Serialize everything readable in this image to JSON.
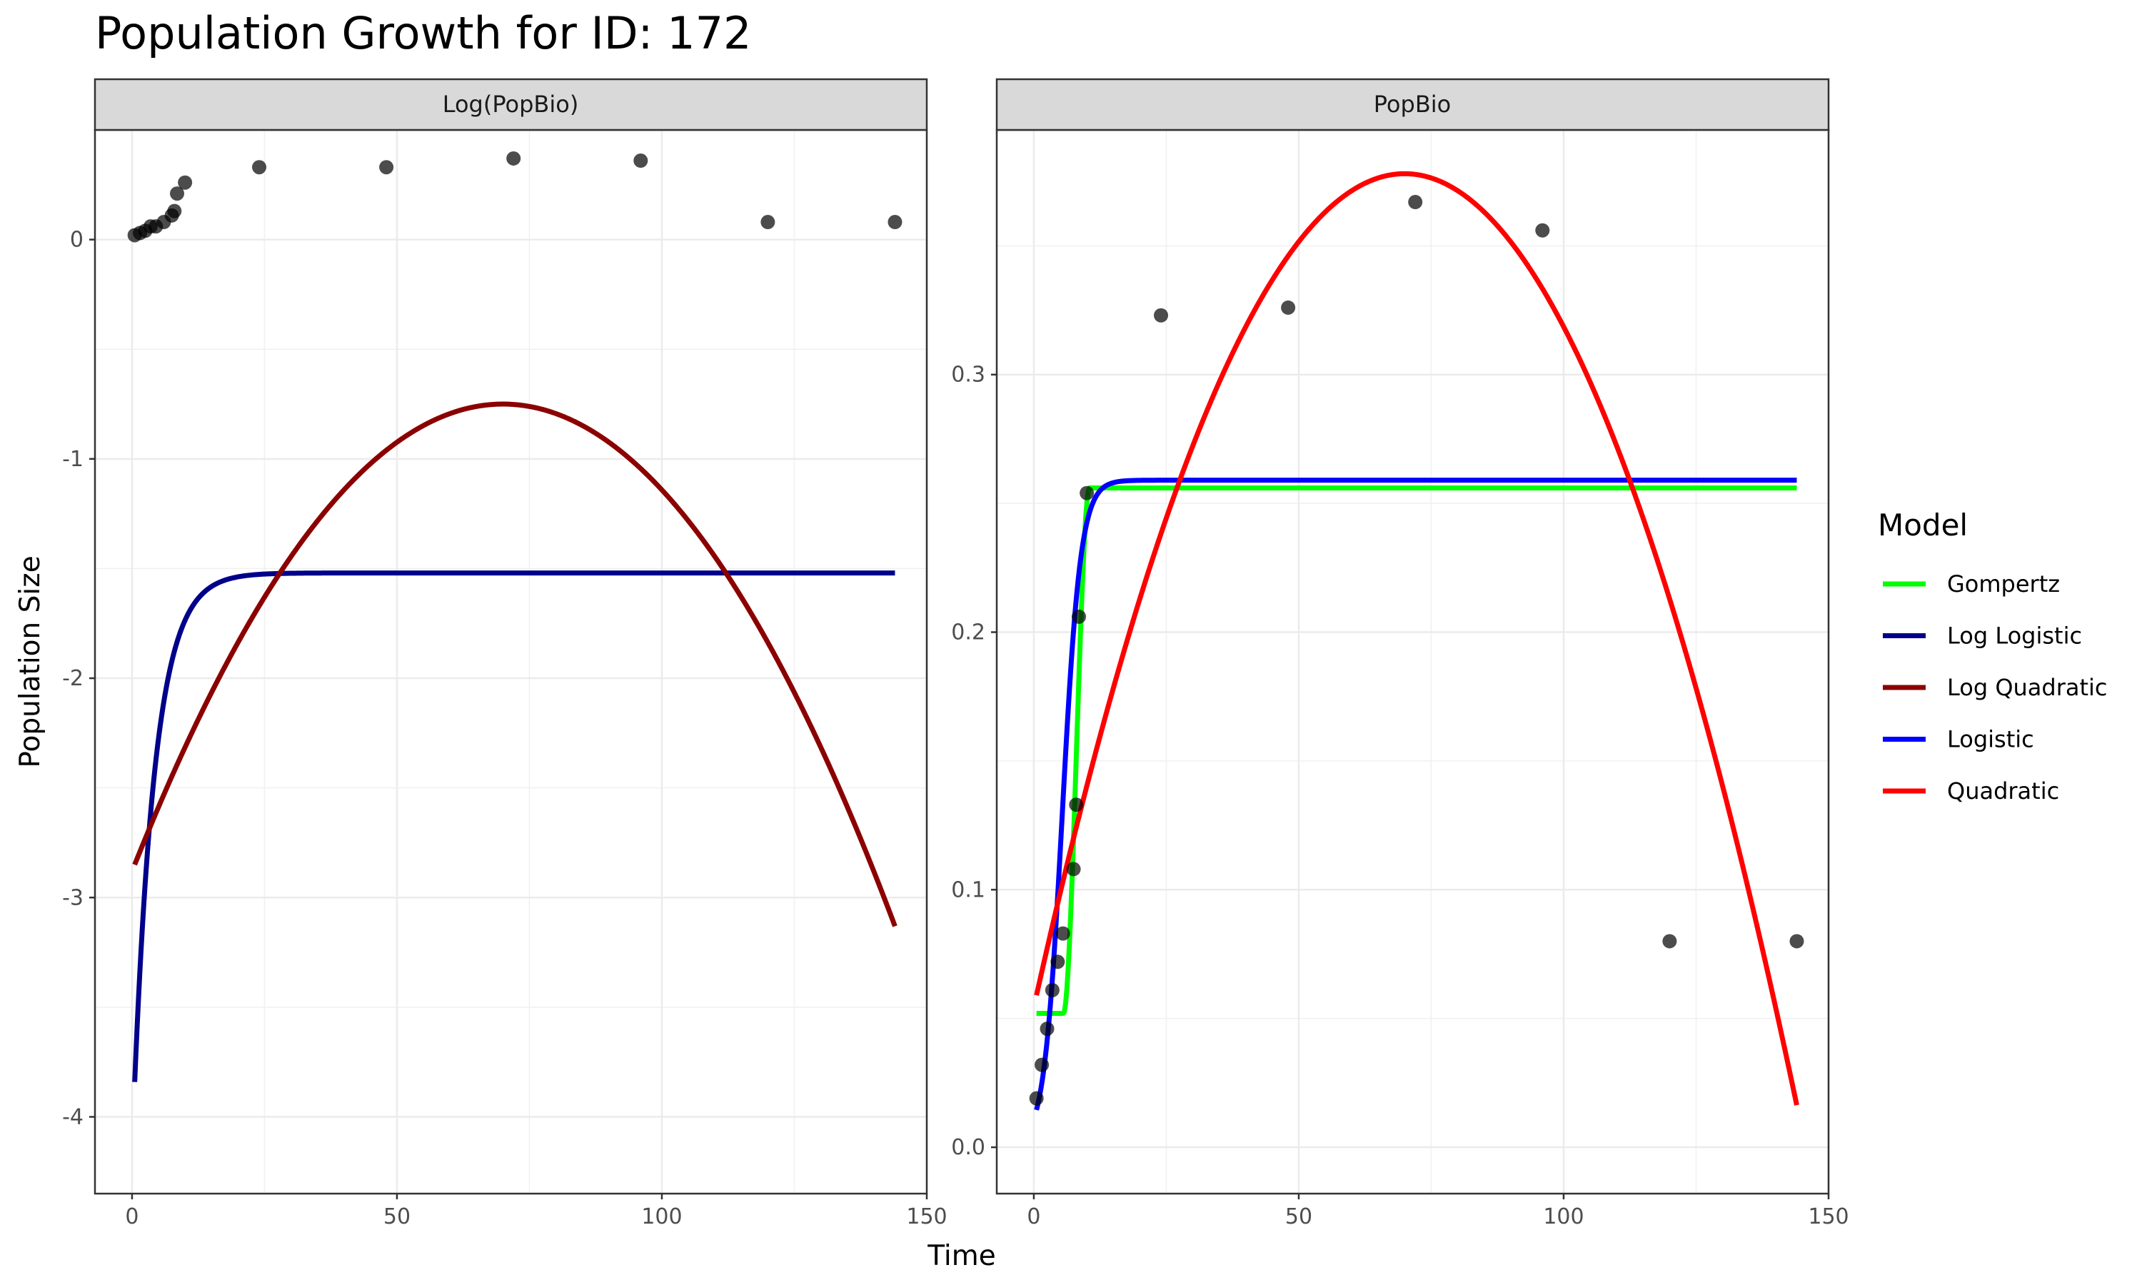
{
  "chart_data": {
    "type": "scatter",
    "title": "Population Growth for ID: 172",
    "xlabel": "Time",
    "ylabel": "Population Size",
    "legend": {
      "title": "Model",
      "placement": "right"
    },
    "series_styles": [
      {
        "name": "Gompertz",
        "color": "#00ff00"
      },
      {
        "name": "Log Logistic",
        "color": "#00008b"
      },
      {
        "name": "Log Quadratic",
        "color": "#8b0000"
      },
      {
        "name": "Logistic",
        "color": "#0000ff"
      },
      {
        "name": "Quadratic",
        "color": "#ff0000"
      }
    ],
    "panels": [
      {
        "strip": "Log(PopBio)",
        "xlim": [
          -7,
          150
        ],
        "ylim": [
          -4.35,
          0.5
        ],
        "x_ticks": [
          0,
          50,
          100,
          150
        ],
        "x_tick_labels": [
          "0",
          "50",
          "100",
          "150"
        ],
        "y_ticks": [
          -4,
          -3,
          -2,
          -1,
          0
        ],
        "y_tick_labels": [
          "-4",
          "-3",
          "-2",
          "-1",
          "0"
        ],
        "points": [
          [
            0.5,
            0.02
          ],
          [
            1.5,
            0.03
          ],
          [
            2.5,
            0.04
          ],
          [
            3.5,
            0.06
          ],
          [
            4.5,
            0.06
          ],
          [
            6,
            0.08
          ],
          [
            7.5,
            0.11
          ],
          [
            8,
            0.13
          ],
          [
            8.5,
            0.21
          ],
          [
            10,
            0.26
          ],
          [
            24,
            0.33
          ],
          [
            48,
            0.33
          ],
          [
            72,
            0.37
          ],
          [
            96,
            0.36
          ],
          [
            120,
            0.08
          ],
          [
            144,
            0.08
          ]
        ],
        "curves": [
          {
            "name": "Log Logistic",
            "model": "loglogistic",
            "params": {
              "a": -4.15,
              "b": -1.52,
              "k": 0.25
            },
            "x_range": [
              0.5,
              144
            ]
          },
          {
            "name": "Log Quadratic",
            "model": "quadratic",
            "params": {
              "x0": 70,
              "ypeak": -0.75,
              "y0": -2.85,
              "x_start": 0.5
            },
            "x_range": [
              0.5,
              144
            ]
          }
        ]
      },
      {
        "strip": "PopBio",
        "xlim": [
          -7,
          150
        ],
        "ylim": [
          -0.018,
          0.395
        ],
        "x_ticks": [
          0,
          50,
          100,
          150
        ],
        "x_tick_labels": [
          "0",
          "50",
          "100",
          "150"
        ],
        "y_ticks": [
          0.0,
          0.1,
          0.2,
          0.3
        ],
        "y_tick_labels": [
          "0.0",
          "0.1",
          "0.2",
          "0.3"
        ],
        "points": [
          [
            0.5,
            0.019
          ],
          [
            1.5,
            0.032
          ],
          [
            2.5,
            0.046
          ],
          [
            3.5,
            0.061
          ],
          [
            4.5,
            0.072
          ],
          [
            5.5,
            0.083
          ],
          [
            7.5,
            0.108
          ],
          [
            8,
            0.133
          ],
          [
            8.5,
            0.206
          ],
          [
            10,
            0.254
          ],
          [
            24,
            0.323
          ],
          [
            48,
            0.326
          ],
          [
            72,
            0.367
          ],
          [
            96,
            0.356
          ],
          [
            120,
            0.08
          ],
          [
            144,
            0.08
          ]
        ],
        "curves": [
          {
            "name": "Gompertz",
            "model": "gompertz",
            "params": {
              "lo": 0.052,
              "hi": 0.256,
              "lag": 5.6,
              "rise_end": 10.5
            },
            "x_range": [
              0.5,
              144
            ]
          },
          {
            "name": "Logistic",
            "model": "logistic",
            "params": {
              "n0": 0.011,
              "K": 0.259,
              "r": 0.58
            },
            "x_range": [
              0.5,
              144
            ]
          },
          {
            "name": "Quadratic",
            "model": "quadratic",
            "params": {
              "x0": 70,
              "ypeak": 0.378,
              "y0": 0.059,
              "x_start": 0.5
            },
            "x_range": [
              0.5,
              144
            ]
          }
        ]
      }
    ]
  }
}
